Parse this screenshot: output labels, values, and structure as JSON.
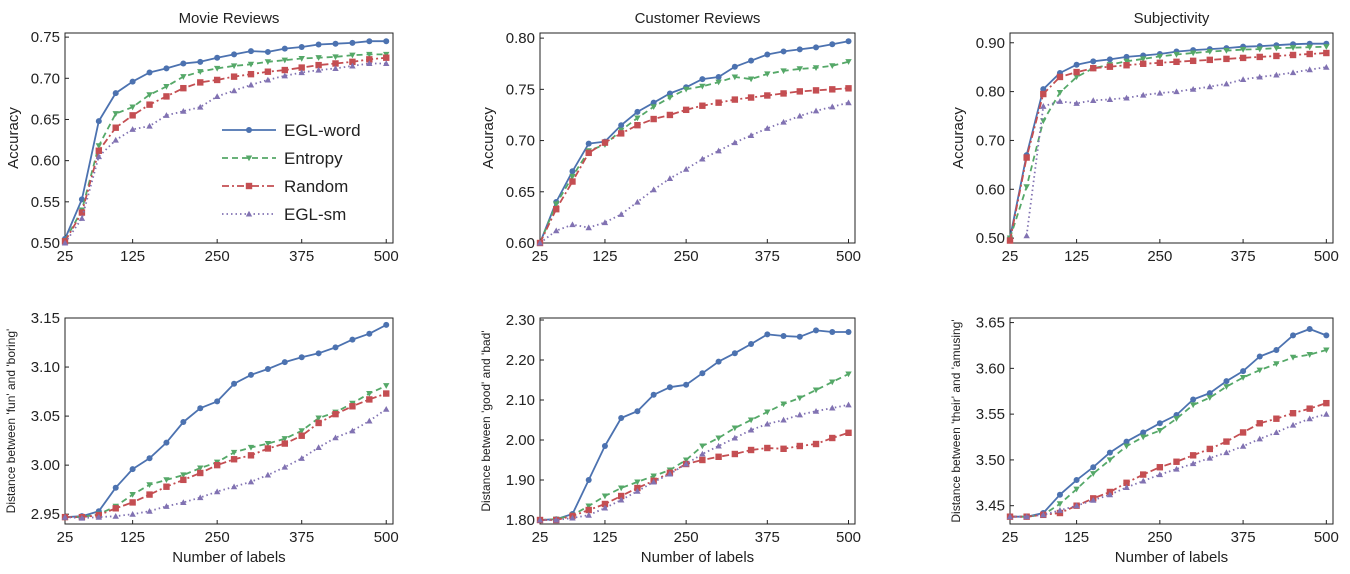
{
  "figure": {
    "background": "#ffffff"
  },
  "series_styles": [
    {
      "name": "EGL-word",
      "color": "#4c72b0",
      "dash": "",
      "marker": "circle"
    },
    {
      "name": "Entropy",
      "color": "#55a868",
      "dash": "6,4",
      "marker": "triangle-down"
    },
    {
      "name": "Random",
      "color": "#c44e52",
      "dash": "7,3,2,3",
      "marker": "square"
    },
    {
      "name": "EGL-sm",
      "color": "#8172b2",
      "dash": "1.5,3",
      "marker": "triangle-up"
    }
  ],
  "legend": {
    "placement": "center-right of top-left panel",
    "entries": [
      "EGL-word",
      "Entropy",
      "Random",
      "EGL-sm"
    ]
  },
  "chart_data": [
    {
      "type": "line",
      "title": "Movie Reviews",
      "xlabel": "",
      "ylabel": "Accuracy",
      "xlim": [
        25,
        510
      ],
      "ylim": [
        0.5,
        0.755
      ],
      "xticks": [
        25,
        125,
        250,
        375,
        500
      ],
      "yticks": [
        0.5,
        0.55,
        0.6,
        0.65,
        0.7,
        0.75
      ],
      "tick_format": "%.2f",
      "grid": false,
      "legend": true,
      "x": [
        25,
        50,
        75,
        100,
        125,
        150,
        175,
        200,
        225,
        250,
        275,
        300,
        325,
        350,
        375,
        400,
        425,
        450,
        475,
        500
      ],
      "series": [
        {
          "name": "EGL-word",
          "values": [
            0.505,
            0.553,
            0.648,
            0.682,
            0.696,
            0.707,
            0.712,
            0.718,
            0.72,
            0.725,
            0.729,
            0.733,
            0.732,
            0.736,
            0.738,
            0.741,
            0.742,
            0.743,
            0.745,
            0.745
          ]
        },
        {
          "name": "Entropy",
          "values": [
            0.503,
            0.54,
            0.618,
            0.657,
            0.665,
            0.68,
            0.69,
            0.702,
            0.708,
            0.712,
            0.715,
            0.717,
            0.72,
            0.722,
            0.724,
            0.725,
            0.726,
            0.728,
            0.729,
            0.729
          ]
        },
        {
          "name": "Random",
          "values": [
            0.502,
            0.537,
            0.612,
            0.64,
            0.655,
            0.668,
            0.678,
            0.688,
            0.695,
            0.698,
            0.702,
            0.705,
            0.708,
            0.71,
            0.713,
            0.716,
            0.718,
            0.72,
            0.723,
            0.725
          ]
        },
        {
          "name": "EGL-sm",
          "values": [
            0.5,
            0.53,
            0.605,
            0.625,
            0.638,
            0.642,
            0.655,
            0.66,
            0.665,
            0.678,
            0.685,
            0.692,
            0.698,
            0.703,
            0.707,
            0.71,
            0.712,
            0.715,
            0.718,
            0.718
          ]
        }
      ]
    },
    {
      "type": "line",
      "title": "Customer Reviews",
      "xlabel": "",
      "ylabel": "Accuracy",
      "xlim": [
        25,
        510
      ],
      "ylim": [
        0.6,
        0.805
      ],
      "xticks": [
        25,
        125,
        250,
        375,
        500
      ],
      "yticks": [
        0.6,
        0.65,
        0.7,
        0.75,
        0.8
      ],
      "tick_format": "%.2f",
      "grid": false,
      "legend": false,
      "x": [
        25,
        50,
        75,
        100,
        125,
        150,
        175,
        200,
        225,
        250,
        275,
        300,
        325,
        350,
        375,
        400,
        425,
        450,
        475,
        500
      ],
      "series": [
        {
          "name": "EGL-word",
          "values": [
            0.6,
            0.64,
            0.67,
            0.697,
            0.699,
            0.715,
            0.728,
            0.737,
            0.746,
            0.752,
            0.76,
            0.762,
            0.772,
            0.778,
            0.784,
            0.787,
            0.789,
            0.791,
            0.794,
            0.797
          ]
        },
        {
          "name": "Entropy",
          "values": [
            0.6,
            0.638,
            0.665,
            0.69,
            0.696,
            0.71,
            0.722,
            0.733,
            0.742,
            0.75,
            0.753,
            0.757,
            0.762,
            0.76,
            0.765,
            0.768,
            0.77,
            0.771,
            0.773,
            0.777
          ]
        },
        {
          "name": "Random",
          "values": [
            0.6,
            0.633,
            0.66,
            0.688,
            0.698,
            0.707,
            0.715,
            0.721,
            0.725,
            0.73,
            0.734,
            0.737,
            0.74,
            0.742,
            0.744,
            0.746,
            0.748,
            0.749,
            0.75,
            0.751
          ]
        },
        {
          "name": "EGL-sm",
          "values": [
            0.6,
            0.612,
            0.618,
            0.615,
            0.62,
            0.628,
            0.64,
            0.652,
            0.663,
            0.672,
            0.682,
            0.69,
            0.698,
            0.705,
            0.712,
            0.718,
            0.724,
            0.729,
            0.733,
            0.737
          ]
        }
      ]
    },
    {
      "type": "line",
      "title": "Subjectivity",
      "xlabel": "",
      "ylabel": "Accuracy",
      "xlim": [
        25,
        510
      ],
      "ylim": [
        0.49,
        0.92
      ],
      "xticks": [
        25,
        125,
        250,
        375,
        500
      ],
      "yticks": [
        0.5,
        0.6,
        0.7,
        0.8,
        0.9
      ],
      "tick_format": "%.2f",
      "grid": false,
      "legend": false,
      "x": [
        25,
        50,
        75,
        100,
        125,
        150,
        175,
        200,
        225,
        250,
        275,
        300,
        325,
        350,
        375,
        400,
        425,
        450,
        475,
        500
      ],
      "series": [
        {
          "name": "EGL-word",
          "values": [
            0.5,
            0.67,
            0.805,
            0.838,
            0.855,
            0.862,
            0.866,
            0.871,
            0.874,
            0.877,
            0.882,
            0.885,
            0.887,
            0.889,
            0.892,
            0.893,
            0.895,
            0.897,
            0.898,
            0.898
          ]
        },
        {
          "name": "Entropy",
          "values": [
            0.5,
            0.605,
            0.74,
            0.798,
            0.83,
            0.848,
            0.855,
            0.862,
            0.867,
            0.872,
            0.876,
            0.879,
            0.882,
            0.884,
            0.886,
            0.887,
            0.889,
            0.89,
            0.891,
            0.892
          ]
        },
        {
          "name": "Random",
          "values": [
            0.495,
            0.665,
            0.795,
            0.83,
            0.84,
            0.848,
            0.851,
            0.854,
            0.857,
            0.859,
            0.861,
            0.863,
            0.865,
            0.867,
            0.869,
            0.871,
            0.873,
            0.875,
            0.877,
            0.879
          ]
        },
        {
          "name": "EGL-sm",
          "values": [
            null,
            0.505,
            0.77,
            0.78,
            0.776,
            0.782,
            0.784,
            0.787,
            0.793,
            0.797,
            0.8,
            0.805,
            0.81,
            0.816,
            0.825,
            0.83,
            0.834,
            0.839,
            0.845,
            0.85
          ]
        }
      ]
    },
    {
      "type": "line",
      "title": "",
      "xlabel": "Number of labels",
      "ylabel": "Distance between 'fun' and 'boring'",
      "xlim": [
        25,
        510
      ],
      "ylim": [
        2.94,
        3.15
      ],
      "xticks": [
        25,
        125,
        250,
        375,
        500
      ],
      "yticks": [
        2.95,
        3.0,
        3.05,
        3.1,
        3.15
      ],
      "tick_format": "%.2f",
      "grid": false,
      "legend": false,
      "x": [
        25,
        50,
        75,
        100,
        125,
        150,
        175,
        200,
        225,
        250,
        275,
        300,
        325,
        350,
        375,
        400,
        425,
        450,
        475,
        500
      ],
      "series": [
        {
          "name": "EGL-word",
          "values": [
            2.947,
            2.948,
            2.953,
            2.977,
            2.996,
            3.007,
            3.023,
            3.044,
            3.058,
            3.065,
            3.083,
            3.092,
            3.098,
            3.105,
            3.11,
            3.114,
            3.12,
            3.128,
            3.134,
            3.143
          ]
        },
        {
          "name": "Entropy",
          "values": [
            2.947,
            2.947,
            2.95,
            2.958,
            2.97,
            2.98,
            2.985,
            2.99,
            2.997,
            3.003,
            3.013,
            3.018,
            3.022,
            3.027,
            3.035,
            3.048,
            3.054,
            3.063,
            3.073,
            3.081
          ]
        },
        {
          "name": "Random",
          "values": [
            2.947,
            2.947,
            2.949,
            2.956,
            2.962,
            2.97,
            2.978,
            2.985,
            2.992,
            3.0,
            3.006,
            3.01,
            3.017,
            3.022,
            3.03,
            3.043,
            3.052,
            3.06,
            3.067,
            3.073
          ]
        },
        {
          "name": "EGL-sm",
          "values": [
            2.947,
            2.946,
            2.947,
            2.948,
            2.95,
            2.953,
            2.958,
            2.962,
            2.967,
            2.973,
            2.978,
            2.983,
            2.99,
            2.998,
            3.007,
            3.018,
            3.028,
            3.035,
            3.045,
            3.057
          ]
        }
      ]
    },
    {
      "type": "line",
      "title": "",
      "xlabel": "Number of labels",
      "ylabel": "Distance between 'good' and 'bad'",
      "xlim": [
        25,
        510
      ],
      "ylim": [
        1.79,
        2.305
      ],
      "xticks": [
        25,
        125,
        250,
        375,
        500
      ],
      "yticks": [
        1.8,
        1.9,
        2.0,
        2.1,
        2.2,
        2.3
      ],
      "tick_format": "%.2f",
      "grid": false,
      "legend": false,
      "x": [
        25,
        50,
        75,
        100,
        125,
        150,
        175,
        200,
        225,
        250,
        275,
        300,
        325,
        350,
        375,
        400,
        425,
        450,
        475,
        500
      ],
      "series": [
        {
          "name": "EGL-word",
          "values": [
            1.8,
            1.802,
            1.815,
            1.9,
            1.985,
            2.055,
            2.072,
            2.113,
            2.132,
            2.138,
            2.167,
            2.196,
            2.217,
            2.24,
            2.264,
            2.26,
            2.258,
            2.274,
            2.27,
            2.27
          ]
        },
        {
          "name": "Entropy",
          "values": [
            1.8,
            1.802,
            1.812,
            1.835,
            1.86,
            1.88,
            1.895,
            1.91,
            1.925,
            1.95,
            1.985,
            2.005,
            2.03,
            2.05,
            2.07,
            2.09,
            2.105,
            2.125,
            2.145,
            2.165
          ]
        },
        {
          "name": "Random",
          "values": [
            1.8,
            1.8,
            1.81,
            1.825,
            1.84,
            1.86,
            1.88,
            1.898,
            1.918,
            1.94,
            1.95,
            1.958,
            1.965,
            1.975,
            1.98,
            1.978,
            1.985,
            1.99,
            2.005,
            2.018
          ]
        },
        {
          "name": "EGL-sm",
          "values": [
            1.8,
            1.8,
            1.805,
            1.812,
            1.83,
            1.85,
            1.872,
            1.895,
            1.915,
            1.94,
            1.965,
            1.985,
            2.005,
            2.025,
            2.04,
            2.05,
            2.063,
            2.072,
            2.08,
            2.088
          ]
        }
      ]
    },
    {
      "type": "line",
      "title": "",
      "xlabel": "Number of labels",
      "ylabel": "Distance between 'their' and 'amusing'",
      "xlim": [
        25,
        510
      ],
      "ylim": [
        3.43,
        3.655
      ],
      "xticks": [
        25,
        125,
        250,
        375,
        500
      ],
      "yticks": [
        3.45,
        3.5,
        3.55,
        3.6,
        3.65
      ],
      "tick_format": "%.2f",
      "grid": false,
      "legend": false,
      "x": [
        25,
        50,
        75,
        100,
        125,
        150,
        175,
        200,
        225,
        250,
        275,
        300,
        325,
        350,
        375,
        400,
        425,
        450,
        475,
        500
      ],
      "series": [
        {
          "name": "EGL-word",
          "values": [
            3.438,
            3.438,
            3.442,
            3.462,
            3.478,
            3.492,
            3.508,
            3.52,
            3.53,
            3.54,
            3.549,
            3.566,
            3.573,
            3.586,
            3.597,
            3.613,
            3.62,
            3.636,
            3.643,
            3.636
          ]
        },
        {
          "name": "Entropy",
          "values": [
            3.438,
            3.438,
            3.44,
            3.452,
            3.468,
            3.485,
            3.5,
            3.515,
            3.525,
            3.532,
            3.545,
            3.56,
            3.568,
            3.58,
            3.59,
            3.598,
            3.605,
            3.612,
            3.615,
            3.62
          ]
        },
        {
          "name": "Random",
          "values": [
            3.438,
            3.438,
            3.44,
            3.442,
            3.45,
            3.458,
            3.465,
            3.475,
            3.484,
            3.492,
            3.498,
            3.505,
            3.512,
            3.52,
            3.53,
            3.54,
            3.545,
            3.551,
            3.556,
            3.562
          ]
        },
        {
          "name": "EGL-sm",
          "values": [
            3.438,
            3.438,
            3.44,
            3.445,
            3.45,
            3.456,
            3.462,
            3.47,
            3.477,
            3.484,
            3.49,
            3.496,
            3.502,
            3.508,
            3.515,
            3.523,
            3.53,
            3.538,
            3.545,
            3.55
          ]
        }
      ]
    }
  ]
}
